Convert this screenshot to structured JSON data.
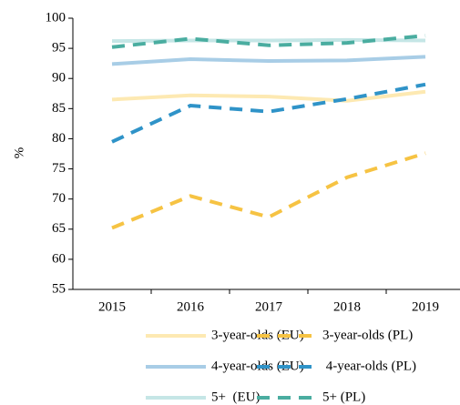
{
  "chart_data": {
    "type": "line",
    "y_label": "%",
    "categories": [
      "2015",
      "2016",
      "2017",
      "2018",
      "2019"
    ],
    "ylim": [
      55,
      100
    ],
    "yticks": [
      55,
      60,
      65,
      70,
      75,
      80,
      85,
      90,
      95,
      100
    ],
    "series": [
      {
        "name": "3-year-olds (EU)",
        "color": "#fde9b2",
        "style": "solid",
        "values": [
          86.5,
          87.2,
          87.0,
          86.3,
          87.8
        ]
      },
      {
        "name": "3-year-olds (PL)",
        "color": "#f6c343",
        "style": "dashed",
        "values": [
          65.2,
          70.5,
          67.0,
          73.6,
          77.6
        ]
      },
      {
        "name": "4-year-olds (EU)",
        "color": "#a8cde6",
        "style": "solid",
        "values": [
          92.4,
          93.2,
          92.9,
          93.0,
          93.6
        ]
      },
      {
        "name": " 4-year-olds (PL)",
        "color": "#2f93c8",
        "style": "dashed",
        "values": [
          79.5,
          85.5,
          84.5,
          86.6,
          89.0
        ]
      },
      {
        "name": "5+  (EU)",
        "color": "#c5e6e6",
        "style": "solid",
        "values": [
          96.2,
          96.3,
          96.3,
          96.4,
          96.3
        ]
      },
      {
        "name": "5+ (PL)",
        "color": "#4aada0",
        "style": "dashed",
        "values": [
          95.2,
          96.6,
          95.5,
          95.9,
          97.1
        ]
      }
    ]
  }
}
